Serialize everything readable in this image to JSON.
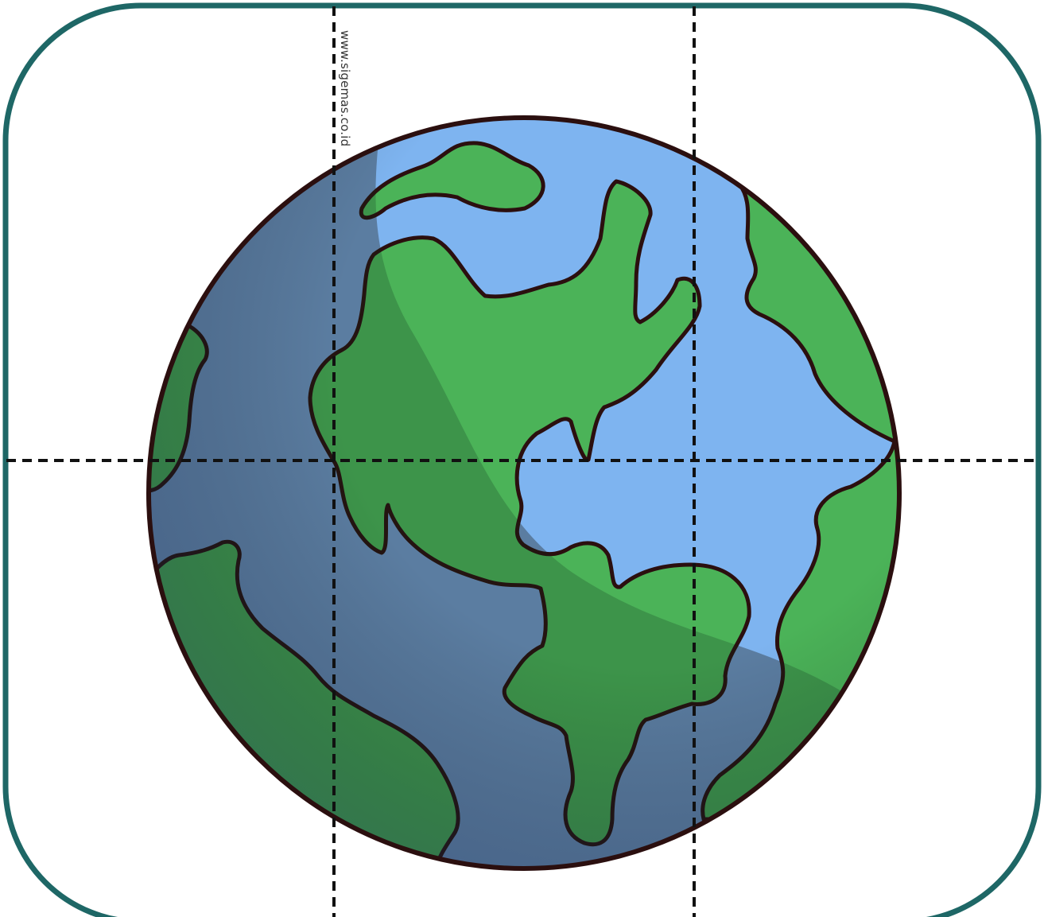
{
  "watermark": "www.sigemas.co.id",
  "illustration": {
    "subject": "globe",
    "icon": "earth-globe-icon",
    "pieces": {
      "rows": 2,
      "columns": 3
    }
  },
  "colors": {
    "frame": "#1e6766",
    "ocean": "#7eb4f0",
    "ocean_shadow": "#6f8fbf",
    "land": "#4bb358",
    "land_shadow": "#3d7a3d",
    "outline": "#2b0f0f",
    "cut_line": "#111111",
    "background": "#ffffff"
  }
}
